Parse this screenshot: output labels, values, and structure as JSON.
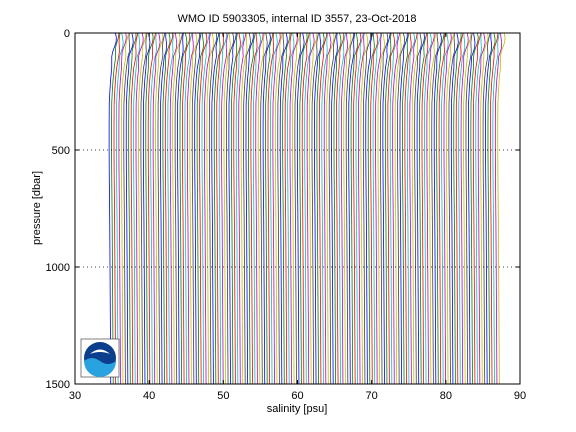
{
  "chart_data": {
    "type": "line",
    "title": "WMO ID 5903305, internal ID 3557, 23-Oct-2018",
    "xlabel": "salinity [psu]",
    "ylabel": "pressure [dbar]",
    "xlim": [
      30,
      90
    ],
    "ylim": [
      0,
      1500
    ],
    "y_reversed": true,
    "x_ticks": [
      30,
      40,
      50,
      60,
      70,
      80,
      90
    ],
    "y_ticks": [
      0,
      500,
      1000,
      1500
    ],
    "grid": "dotted at y = 500 and y = 1000",
    "series_description_pattern": "many offset salinity profiles, each shifted by a small constant in x",
    "profiles": {
      "count": 160,
      "first_offset_salinity": 34.9,
      "last_offset_salinity": 87.3,
      "pressure_levels_dbar": [
        0,
        20,
        40,
        60,
        80,
        100,
        150,
        200,
        250,
        300,
        400,
        500,
        600,
        700,
        800,
        900,
        1000,
        1100,
        1200,
        1300,
        1400,
        1500
      ],
      "base_profile_anomaly_psu": [
        0.55,
        0.55,
        0.5,
        0.4,
        0.3,
        0.2,
        0.05,
        -0.1,
        -0.2,
        -0.28,
        -0.3,
        -0.3,
        -0.28,
        -0.25,
        -0.22,
        -0.2,
        -0.18,
        -0.16,
        -0.14,
        -0.12,
        -0.1,
        -0.08
      ]
    },
    "colors": [
      "#0000ff",
      "#008000",
      "#ff0000",
      "#00bfbf",
      "#bf00bf",
      "#bfbf00",
      "#404040"
    ]
  },
  "logo": {
    "name": "noaa-logo",
    "text": "NOAA"
  }
}
